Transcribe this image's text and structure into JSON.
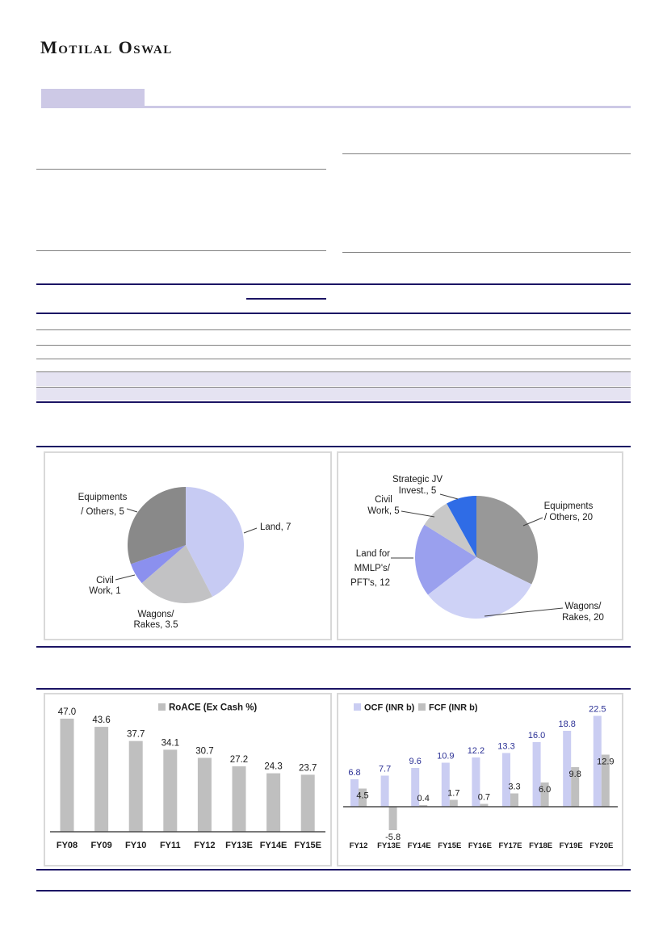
{
  "brand": {
    "logo_text": "Motilal Oswal"
  },
  "colors": {
    "navy_rule": "#1b1464",
    "gray_rule": "#808080",
    "tab_lavender": "#cdc9e6",
    "row_lavender": "#e5e3f2",
    "panel_border": "#d9d9d9",
    "bar_gray": "#bfbfbf",
    "bar_lavender": "#cacdf2",
    "ocf_label_navy": "#2b3095"
  },
  "chart_data": [
    {
      "type": "pie",
      "name": "capex-pie-small",
      "slices": [
        {
          "label": "Land",
          "value": 7,
          "color": "#c7cbf3",
          "label_lines": [
            "Land, 7"
          ]
        },
        {
          "label": "Wagons/Rakes",
          "value": 3.5,
          "color": "#c2c2c4",
          "label_lines": [
            "Wagons/",
            "Rakes, 3.5"
          ]
        },
        {
          "label": "Civil Work",
          "value": 1,
          "color": "#8b90ee",
          "label_lines": [
            "Civil",
            "Work, 1"
          ]
        },
        {
          "label": "Equipments/Others",
          "value": 5,
          "color": "#898989",
          "label_lines": [
            "Equipments",
            "/ Others, 5"
          ]
        }
      ]
    },
    {
      "type": "pie",
      "name": "capex-pie-large",
      "slices": [
        {
          "label": "Equipments/Others",
          "value": 20,
          "color": "#989898",
          "label_lines": [
            "Equipments",
            "/ Others, 20"
          ]
        },
        {
          "label": "Wagons/Rakes",
          "value": 20,
          "color": "#ced2f6",
          "label_lines": [
            "Wagons/",
            "Rakes, 20"
          ]
        },
        {
          "label": "Land for MMLP's/PFT's",
          "value": 12,
          "color": "#9aa0ee",
          "label_lines": [
            "Land for",
            "MMLP's/",
            "PFT's, 12"
          ]
        },
        {
          "label": "Civil Work",
          "value": 5,
          "color": "#c8c8c8",
          "label_lines": [
            "Civil",
            "Work, 5"
          ]
        },
        {
          "label": "Strategic JV Invest.",
          "value": 5,
          "color": "#2f6ce6",
          "label_lines": [
            "Strategic JV",
            "Invest., 5"
          ]
        }
      ]
    },
    {
      "type": "bar",
      "name": "roace-ex-cash",
      "legend": [
        "RoACE (Ex Cash %)"
      ],
      "categories": [
        "FY08",
        "FY09",
        "FY10",
        "FY11",
        "FY12",
        "FY13E",
        "FY14E",
        "FY15E"
      ],
      "series": [
        {
          "name": "RoACE (Ex Cash %)",
          "color": "#bfbfbf",
          "label_color": "#1a1a1a",
          "values": [
            47.0,
            43.6,
            37.7,
            34.1,
            30.7,
            27.2,
            24.3,
            23.7
          ]
        }
      ],
      "ylim": [
        0,
        50
      ]
    },
    {
      "type": "bar",
      "name": "ocf-fcf",
      "legend": [
        "OCF (INR b)",
        "FCF (INR b)"
      ],
      "categories": [
        "FY12",
        "FY13E",
        "FY14E",
        "FY15E",
        "FY16E",
        "FY17E",
        "FY18E",
        "FY19E",
        "FY20E"
      ],
      "series": [
        {
          "name": "OCF (INR b)",
          "color": "#cacdf2",
          "label_color": "#2b3095",
          "values": [
            6.8,
            7.7,
            9.6,
            10.9,
            12.2,
            13.3,
            16.0,
            18.8,
            22.5
          ]
        },
        {
          "name": "FCF (INR b)",
          "color": "#bfbfbf",
          "label_color": "#1a1a1a",
          "values": [
            4.5,
            -5.8,
            0.4,
            1.7,
            0.7,
            3.3,
            6.0,
            9.8,
            12.9
          ]
        }
      ],
      "ylim": [
        -8,
        24
      ]
    }
  ]
}
